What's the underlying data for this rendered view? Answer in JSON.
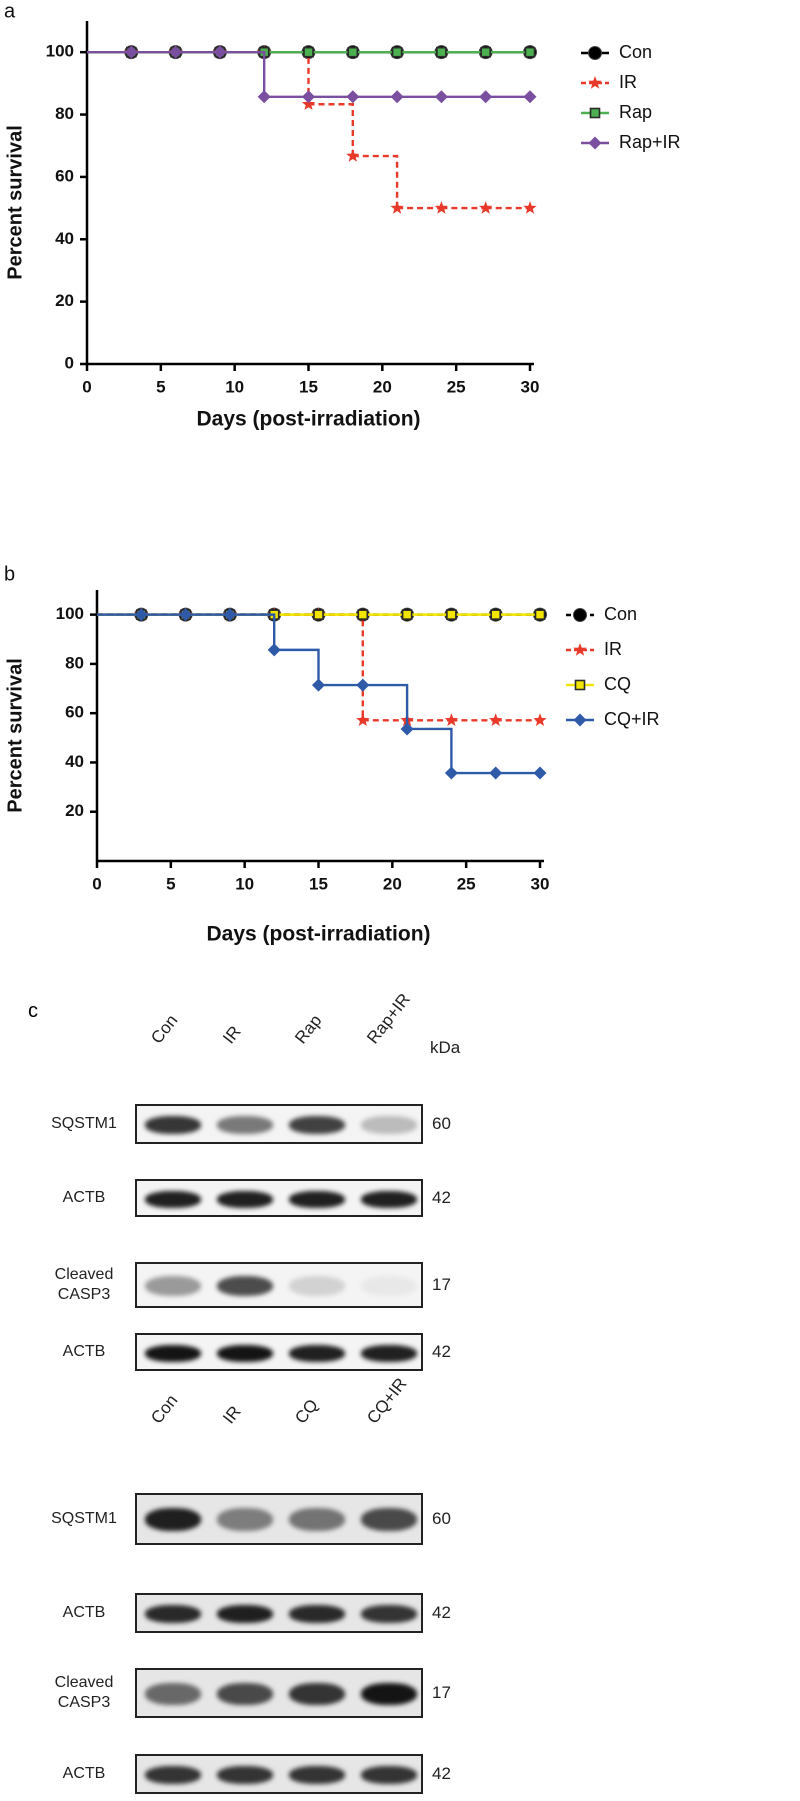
{
  "chart_data": [
    {
      "type": "line",
      "panel": "a",
      "xlabel": "Days (post-irradiation)",
      "ylabel": "Percent survival",
      "x": [
        0,
        3,
        6,
        9,
        12,
        15,
        18,
        21,
        24,
        27,
        30
      ],
      "xlim": [
        0,
        30
      ],
      "xticks": [
        0,
        5,
        10,
        15,
        20,
        25,
        30
      ],
      "ylim": [
        0,
        110
      ],
      "yticks": [
        0,
        20,
        40,
        60,
        80,
        100
      ],
      "step": true,
      "legend": "upper right",
      "series": [
        {
          "name": "Con",
          "color": "#000000",
          "marker": "circle",
          "dashed": false,
          "values": [
            100,
            100,
            100,
            100,
            100,
            100,
            100,
            100,
            100,
            100,
            100
          ]
        },
        {
          "name": "IR",
          "color": "#e8392b",
          "marker": "star",
          "dashed": true,
          "values": [
            100,
            100,
            100,
            100,
            100,
            83.3,
            66.7,
            50,
            50,
            50,
            50
          ]
        },
        {
          "name": "Rap",
          "color": "#4caf50",
          "marker": "square",
          "dashed": false,
          "values": [
            100,
            100,
            100,
            100,
            100,
            100,
            100,
            100,
            100,
            100,
            100
          ]
        },
        {
          "name": "Rap+IR",
          "color": "#7b4fa0",
          "marker": "diamond",
          "dashed": false,
          "values": [
            100,
            100,
            100,
            100,
            85.7,
            85.7,
            85.7,
            85.7,
            85.7,
            85.7,
            85.7
          ]
        }
      ]
    },
    {
      "type": "line",
      "panel": "b",
      "xlabel": "Days (post-irradiation)",
      "ylabel": "Percent survival",
      "x": [
        0,
        3,
        6,
        9,
        12,
        15,
        18,
        21,
        24,
        27,
        30
      ],
      "xlim": [
        0,
        30
      ],
      "xticks": [
        0,
        5,
        10,
        15,
        20,
        25,
        30
      ],
      "ylim": [
        0,
        110
      ],
      "yticks": [
        20,
        40,
        60,
        80,
        100
      ],
      "step": true,
      "legend": "upper right",
      "series": [
        {
          "name": "Con",
          "color": "#000000",
          "marker": "circle",
          "dashed": true,
          "values": [
            100,
            100,
            100,
            100,
            100,
            100,
            100,
            100,
            100,
            100,
            100
          ]
        },
        {
          "name": "IR",
          "color": "#e8392b",
          "marker": "star",
          "dashed": true,
          "values": [
            100,
            100,
            100,
            100,
            100,
            100,
            57.1,
            57.1,
            57.1,
            57.1,
            57.1
          ]
        },
        {
          "name": "CQ",
          "color": "#f2e600",
          "marker": "square",
          "dashed": false,
          "values": [
            100,
            100,
            100,
            100,
            100,
            100,
            100,
            100,
            100,
            100,
            100
          ]
        },
        {
          "name": "CQ+IR",
          "color": "#2f5aa8",
          "marker": "diamond",
          "dashed": false,
          "values": [
            100,
            100,
            100,
            100,
            85.7,
            71.4,
            71.4,
            53.6,
            35.7,
            35.7,
            35.7
          ]
        }
      ]
    }
  ],
  "blot": {
    "panel": "c",
    "unit": "kDa",
    "groups": [
      {
        "lanes": [
          "Con",
          "IR",
          "Rap",
          "Rap+IR"
        ],
        "rows": [
          {
            "label": "SQSTM1",
            "kda": 60
          },
          {
            "label": "ACTB",
            "kda": 42
          },
          {
            "label": "Cleaved CASP3",
            "kda": 17
          },
          {
            "label": "ACTB",
            "kda": 42
          }
        ]
      },
      {
        "lanes": [
          "Con",
          "IR",
          "CQ",
          "CQ+IR"
        ],
        "rows": [
          {
            "label": "SQSTM1",
            "kda": 60
          },
          {
            "label": "ACTB",
            "kda": 42
          },
          {
            "label": "Cleaved CASP3",
            "kda": 17
          },
          {
            "label": "ACTB",
            "kda": 42
          }
        ]
      }
    ]
  }
}
